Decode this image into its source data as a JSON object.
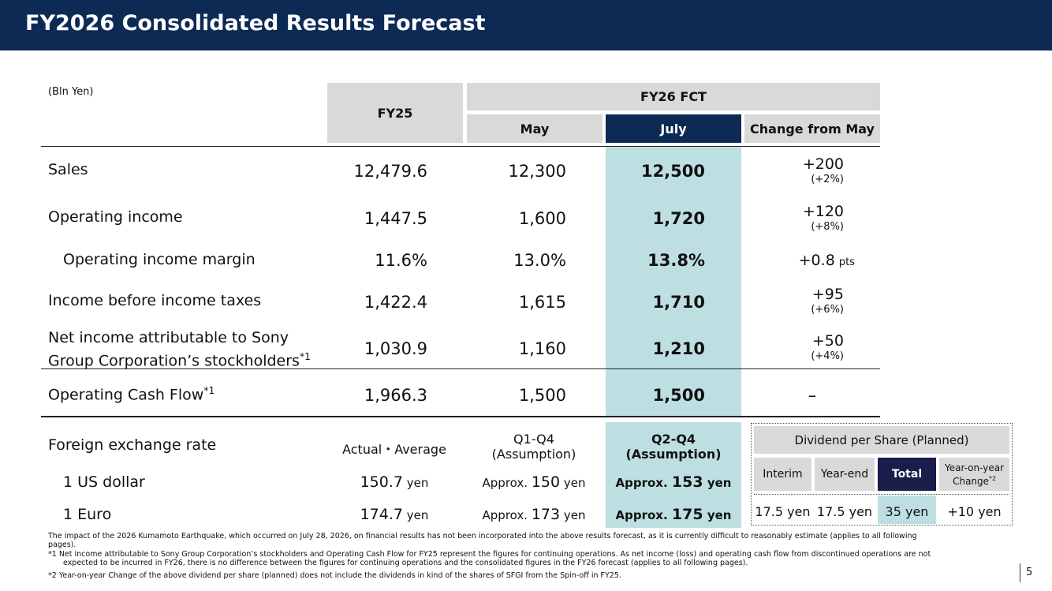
{
  "title": "FY2026 Consolidated Results Forecast",
  "unit": "(Bln Yen)",
  "headers": {
    "fy25": "FY25",
    "fy26": "FY26 FCT",
    "may": "May",
    "july": "July",
    "change": "Change from May"
  },
  "rows": [
    {
      "label": "Sales",
      "fy25": "12,479.6",
      "may": "12,300",
      "july": "12,500",
      "change": "+200",
      "change_pct": "(+2%)"
    },
    {
      "label": "Operating income",
      "fy25": "1,447.5",
      "may": "1,600",
      "july": "1,720",
      "change": "+120",
      "change_pct": "(+8%)"
    },
    {
      "label": "Operating income margin",
      "fy25": "11.6%",
      "may": "13.0%",
      "july": "13.8%",
      "change": "+0.8",
      "change_unit": "pts"
    },
    {
      "label": "Income before income taxes",
      "fy25": "1,422.4",
      "may": "1,615",
      "july": "1,710",
      "change": "+95",
      "change_pct": "(+6%)"
    },
    {
      "label_line1": "Net income attributable to Sony",
      "label_line2": "Group Corporation’s stockholders",
      "footnote": "*1",
      "fy25": "1,030.9",
      "may": "1,160",
      "july": "1,210",
      "change": "+50",
      "change_pct": "(+4%)"
    },
    {
      "label": "Operating Cash Flow",
      "footnote": "*1",
      "fy25": "1,966.3",
      "may": "1,500",
      "july": "1,500",
      "change": "–"
    }
  ],
  "fx": {
    "label": "Foreign exchange rate",
    "fy25_head": "Actual・Average",
    "may_head_1": "Q1-Q4",
    "may_head_2": "(Assumption)",
    "july_head_1": "Q2-Q4",
    "july_head_2": "(Assumption)",
    "usd_label": "1 US dollar",
    "eur_label": "1 Euro",
    "approx": "Approx.",
    "yen": "yen",
    "usd_fy25": "150.7",
    "usd_may": "150",
    "usd_july": "153",
    "eur_fy25": "174.7",
    "eur_may": "173",
    "eur_july": "175"
  },
  "dividend": {
    "title": "Dividend per Share (Planned)",
    "interim": "Interim",
    "year_end": "Year-end",
    "total": "Total",
    "yoy_1": "Year-on-year",
    "yoy_2": "Change",
    "yoy_note": "*2",
    "interim_val": "17.5 yen",
    "year_end_val": "17.5 yen",
    "total_val": "35 yen",
    "yoy_val": "+10 yen"
  },
  "notes": {
    "line1": "The impact of the 2026 Kumamoto Earthquake, which occurred on July 28, 2026, on financial results has not been incorporated into the above results forecast, as it is currently difficult to reasonably estimate (applies to all following",
    "line2": "pages).",
    "line3": "*1  Net income attributable to Sony Group Corporation’s stockholders and Operating Cash Flow for FY25 represent the figures for continuing operations. As net income (loss) and operating cash flow from discontinued operations are not",
    "line4": "expected to be incurred in FY26, there is no difference between the figures for continuing operations and the consolidated figures in the FY26 forecast (applies to all following pages).",
    "line5": "*2  Year-on-year Change of the above dividend per share (planned) does not include the dividends in kind of the shares of SFGI from the Spin-off in FY25."
  },
  "page_number": "5",
  "colors": {
    "navy": "#0d2a55",
    "highlight": "#bddfe2",
    "header_gray": "#d9d9d9"
  }
}
